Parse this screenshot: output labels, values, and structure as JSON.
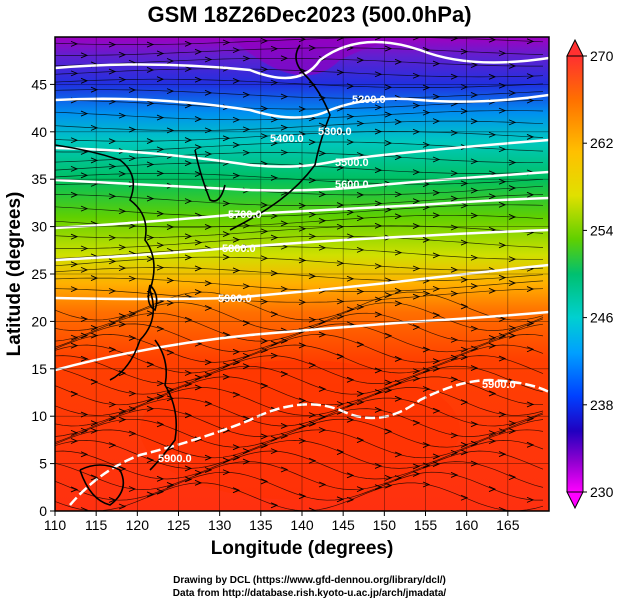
{
  "title": "GSM 18Z26Dec2023 (500.0hPa)",
  "map": {
    "lon_range": [
      110,
      170
    ],
    "lat_range": [
      0,
      50
    ],
    "x_ticks": [
      "110",
      "115",
      "120",
      "125",
      "130",
      "135",
      "140",
      "145",
      "150",
      "155",
      "160",
      "165"
    ],
    "y_ticks": [
      "0",
      "5",
      "10",
      "15",
      "20",
      "25",
      "30",
      "35",
      "40",
      "45"
    ],
    "xlabel": "Longitude (degrees)",
    "ylabel": "Latitude  (degrees)",
    "contour_labels": [
      "5200.0",
      "5300.0",
      "5400.0",
      "5500.0",
      "5600.0",
      "5700.0",
      "5800.0",
      "5900.0",
      "5900.0",
      "5900.0"
    ]
  },
  "colorbar": {
    "min": 230,
    "max": 270,
    "labels": [
      "270",
      "262",
      "254",
      "246",
      "238",
      "230"
    ],
    "colors": [
      "#ff0040",
      "#ff6000",
      "#ffb000",
      "#f0e000",
      "#80e000",
      "#00c060",
      "#00d0c0",
      "#00a0ff",
      "#0040ff",
      "#2000c0",
      "#8000c0",
      "#ff00ff"
    ]
  },
  "credits": {
    "line1": "Drawing by DCL (https://www.gfd-dennou.org/library/dcl/)",
    "line2": "Data from http://database.rish.kyoto-u.ac.jp/arch/jmadata/"
  }
}
